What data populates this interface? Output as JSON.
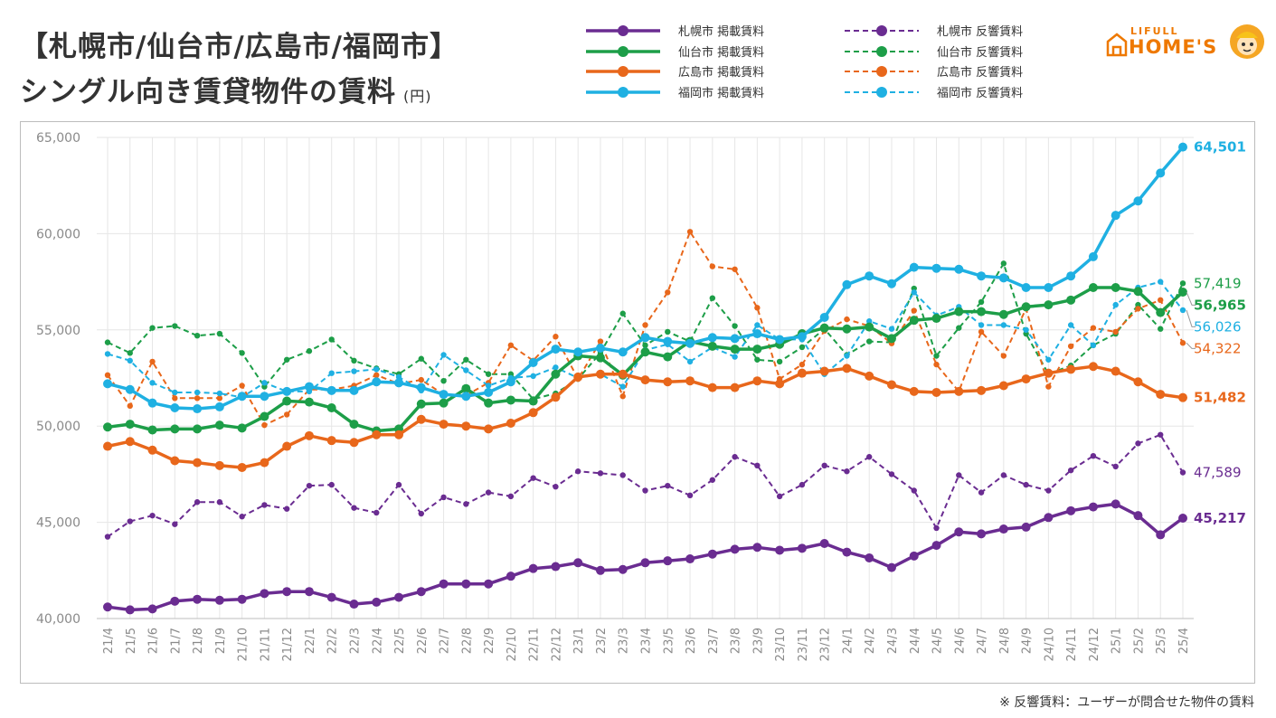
{
  "header": {
    "title_line1": "【札幌市/仙台市/広島市/福岡市】",
    "title_line2": "シングル向き賃貸物件の賃料",
    "unit": "(円)"
  },
  "logo": {
    "top": "LIFULL",
    "bottom": "HOME'S"
  },
  "footnote": "※ 反響賃料：ユーザーが問合せた物件の賃料",
  "colors": {
    "sapporo": "#6a2c91",
    "sendai": "#1d9e48",
    "hiroshima": "#e8671b",
    "fukuoka": "#1fb0e2",
    "grid": "#e6e6e6",
    "axis_text": "#8a8a8a",
    "logo": "#ee7800"
  },
  "chart_data": {
    "type": "line",
    "title": "【札幌市/仙台市/広島市/福岡市】シングル向き賃貸物件の賃料",
    "ylabel": "(円)",
    "xlabel": "",
    "ylim": [
      40000,
      65000
    ],
    "yticks": [
      40000,
      45000,
      50000,
      55000,
      60000,
      65000
    ],
    "ytick_labels": [
      "40,000",
      "45,000",
      "50,000",
      "55,000",
      "60,000",
      "65,000"
    ],
    "grid": true,
    "legend_position": "top-right",
    "categories": [
      "21/4",
      "21/5",
      "21/6",
      "21/7",
      "21/8",
      "21/9",
      "21/10",
      "21/11",
      "21/12",
      "22/1",
      "22/2",
      "22/3",
      "22/4",
      "22/5",
      "22/6",
      "22/7",
      "22/8",
      "22/9",
      "22/10",
      "22/11",
      "22/12",
      "23/1",
      "23/2",
      "23/3",
      "23/4",
      "23/5",
      "23/6",
      "23/7",
      "23/8",
      "23/9",
      "23/10",
      "23/11",
      "23/12",
      "24/1",
      "24/2",
      "24/3",
      "24/4",
      "24/5",
      "24/6",
      "24/7",
      "24/8",
      "24/9",
      "24/10",
      "24/11",
      "24/12",
      "25/1",
      "25/2",
      "25/3",
      "25/4"
    ],
    "series": [
      {
        "name": "札幌市 掲載賃料",
        "city": "sapporo",
        "dashed": false,
        "end_label": "45,217",
        "values": [
          40600,
          40450,
          40500,
          40900,
          41000,
          40950,
          41000,
          41300,
          41400,
          41400,
          41100,
          40750,
          40850,
          41100,
          41400,
          41800,
          41800,
          41800,
          42200,
          42600,
          42700,
          42900,
          42500,
          42550,
          42900,
          43000,
          43100,
          43350,
          43600,
          43700,
          43550,
          43650,
          43900,
          43450,
          43150,
          42650,
          43250,
          43800,
          44500,
          44400,
          44650,
          44750,
          45250,
          45600,
          45800,
          45950,
          45350,
          44350,
          45217
        ]
      },
      {
        "name": "仙台市 掲載賃料",
        "city": "sendai",
        "dashed": false,
        "end_label": "56,965",
        "values": [
          49950,
          50100,
          49800,
          49850,
          49850,
          50050,
          49900,
          50500,
          51300,
          51250,
          50950,
          50100,
          49750,
          49850,
          51150,
          51200,
          51950,
          51200,
          51350,
          51300,
          52700,
          53650,
          53550,
          52650,
          53850,
          53600,
          54400,
          54150,
          54000,
          54000,
          54250,
          54800,
          55100,
          55050,
          55150,
          54550,
          55500,
          55600,
          55950,
          55950,
          55800,
          56200,
          56300,
          56550,
          57200,
          57200,
          57000,
          55900,
          56965
        ]
      },
      {
        "name": "広島市 掲載賃料",
        "city": "hiroshima",
        "dashed": false,
        "end_label": "51,482",
        "values": [
          48950,
          49200,
          48750,
          48200,
          48100,
          47950,
          47850,
          48100,
          48950,
          49500,
          49250,
          49150,
          49550,
          49550,
          50350,
          50100,
          50000,
          49850,
          50150,
          50700,
          51500,
          52550,
          52700,
          52700,
          52400,
          52300,
          52350,
          52000,
          52000,
          52350,
          52200,
          52750,
          52850,
          53000,
          52600,
          52150,
          51800,
          51750,
          51800,
          51850,
          52100,
          52450,
          52750,
          52950,
          53100,
          52850,
          52300,
          51650,
          51482
        ]
      },
      {
        "name": "福岡市 掲載賃料",
        "city": "fukuoka",
        "dashed": false,
        "end_label": "64,501",
        "values": [
          52200,
          51900,
          51200,
          50950,
          50900,
          51000,
          51550,
          51550,
          51800,
          52050,
          51850,
          51850,
          52300,
          52250,
          52000,
          51650,
          51550,
          51750,
          52300,
          53300,
          54000,
          53850,
          54050,
          53850,
          54600,
          54400,
          54300,
          54600,
          54550,
          54800,
          54500,
          54650,
          55650,
          57350,
          57800,
          57400,
          58250,
          58200,
          58150,
          57800,
          57700,
          57200,
          57200,
          57800,
          58800,
          60950,
          61700,
          63150,
          64501
        ]
      },
      {
        "name": "札幌市 反響賃料",
        "city": "sapporo",
        "dashed": true,
        "end_label": "47,589",
        "values": [
          44250,
          45050,
          45350,
          44900,
          46050,
          46050,
          45300,
          45900,
          45700,
          46900,
          46950,
          45750,
          45500,
          46950,
          45450,
          46300,
          45950,
          46550,
          46350,
          47300,
          46850,
          47650,
          47550,
          47450,
          46650,
          46900,
          46400,
          47200,
          48400,
          47950,
          46350,
          46950,
          47950,
          47650,
          48400,
          47500,
          46650,
          44700,
          47450,
          46550,
          47450,
          46950,
          46650,
          47700,
          48450,
          47900,
          49100,
          49550,
          47589
        ]
      },
      {
        "name": "仙台市 反響賃料",
        "city": "sendai",
        "dashed": true,
        "end_label": "57,419",
        "values": [
          54350,
          53800,
          55100,
          55200,
          54700,
          54800,
          53800,
          52050,
          53450,
          53900,
          54500,
          53400,
          53000,
          52700,
          53500,
          52350,
          53450,
          52700,
          52700,
          51400,
          51700,
          52450,
          53800,
          55850,
          54200,
          54900,
          54400,
          56650,
          55200,
          53450,
          53350,
          54100,
          55050,
          53700,
          54400,
          54350,
          57150,
          53650,
          55100,
          56450,
          58450,
          54800,
          52700,
          53150,
          54200,
          54800,
          56300,
          55050,
          57419
        ]
      },
      {
        "name": "広島市 反響賃料",
        "city": "hiroshima",
        "dashed": true,
        "end_label": "54,322",
        "values": [
          52650,
          51050,
          53350,
          51450,
          51450,
          51450,
          52100,
          50050,
          50600,
          51900,
          51900,
          52100,
          52650,
          52200,
          52400,
          51650,
          51600,
          52250,
          54200,
          53400,
          54650,
          52450,
          54400,
          51550,
          55250,
          56950,
          60100,
          58300,
          58150,
          56150,
          52450,
          53200,
          54950,
          55550,
          55200,
          54300,
          56000,
          53200,
          51800,
          54900,
          53650,
          56100,
          52050,
          54150,
          55100,
          54900,
          56100,
          56550,
          54322
        ]
      },
      {
        "name": "福岡市 反響賃料",
        "city": "fukuoka",
        "dashed": true,
        "end_label": "56,026",
        "values": [
          53750,
          53400,
          52250,
          51750,
          51750,
          51700,
          51500,
          52250,
          51800,
          51800,
          52750,
          52850,
          52950,
          52550,
          51850,
          53700,
          52900,
          52100,
          52500,
          52600,
          53050,
          52500,
          52700,
          52050,
          53950,
          54250,
          53350,
          54100,
          53600,
          55250,
          54500,
          54500,
          52700,
          53650,
          55450,
          55050,
          56950,
          55750,
          56200,
          55250,
          55250,
          55000,
          53450,
          55250,
          54200,
          56300,
          57200,
          57500,
          56026
        ]
      }
    ]
  }
}
